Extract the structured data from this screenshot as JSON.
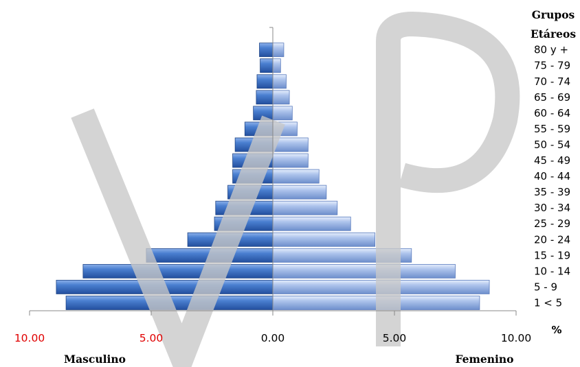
{
  "chart_data": {
    "type": "bar",
    "orientation": "horizontal",
    "subtype": "population-pyramid",
    "legend_title_line1": "Grupos",
    "legend_title_line2": "Etáreos",
    "categories": [
      "1 < 5",
      "5 - 9",
      "10 - 14",
      "15 - 19",
      "20 - 24",
      "25 - 29",
      "30 - 34",
      "35 - 39",
      "40 - 44",
      "45 - 49",
      "50 - 54",
      "55 - 59",
      "60 - 64",
      "65 - 69",
      "70 - 74",
      "75 - 79",
      "80 y +"
    ],
    "series": [
      {
        "name": "Masculino",
        "color": "#3a6fc4",
        "values": [
          8.5,
          8.9,
          7.8,
          5.2,
          3.5,
          2.4,
          2.35,
          1.85,
          1.65,
          1.65,
          1.55,
          1.15,
          0.8,
          0.68,
          0.65,
          0.52,
          0.55
        ]
      },
      {
        "name": "Femenino",
        "color": "#9fb8e6",
        "values": [
          8.5,
          8.9,
          7.5,
          5.7,
          4.2,
          3.2,
          2.65,
          2.2,
          1.9,
          1.45,
          1.45,
          1.0,
          0.8,
          0.68,
          0.55,
          0.32,
          0.45
        ]
      }
    ],
    "xlim": [
      -10,
      10
    ],
    "x_ticks": [
      {
        "value": -10,
        "label": "10.00",
        "color": "#e00000"
      },
      {
        "value": -5,
        "label": "5.00",
        "color": "#e00000"
      },
      {
        "value": 0,
        "label": "0.00",
        "color": "#000000"
      },
      {
        "value": 5,
        "label": "5.00",
        "color": "#000000"
      },
      {
        "value": 10,
        "label": "10.00",
        "color": "#000000"
      }
    ],
    "xlabel_unit": "%",
    "left_label": "Masculino",
    "right_label": "Femenino",
    "watermark_color": "#c8c8c8"
  }
}
